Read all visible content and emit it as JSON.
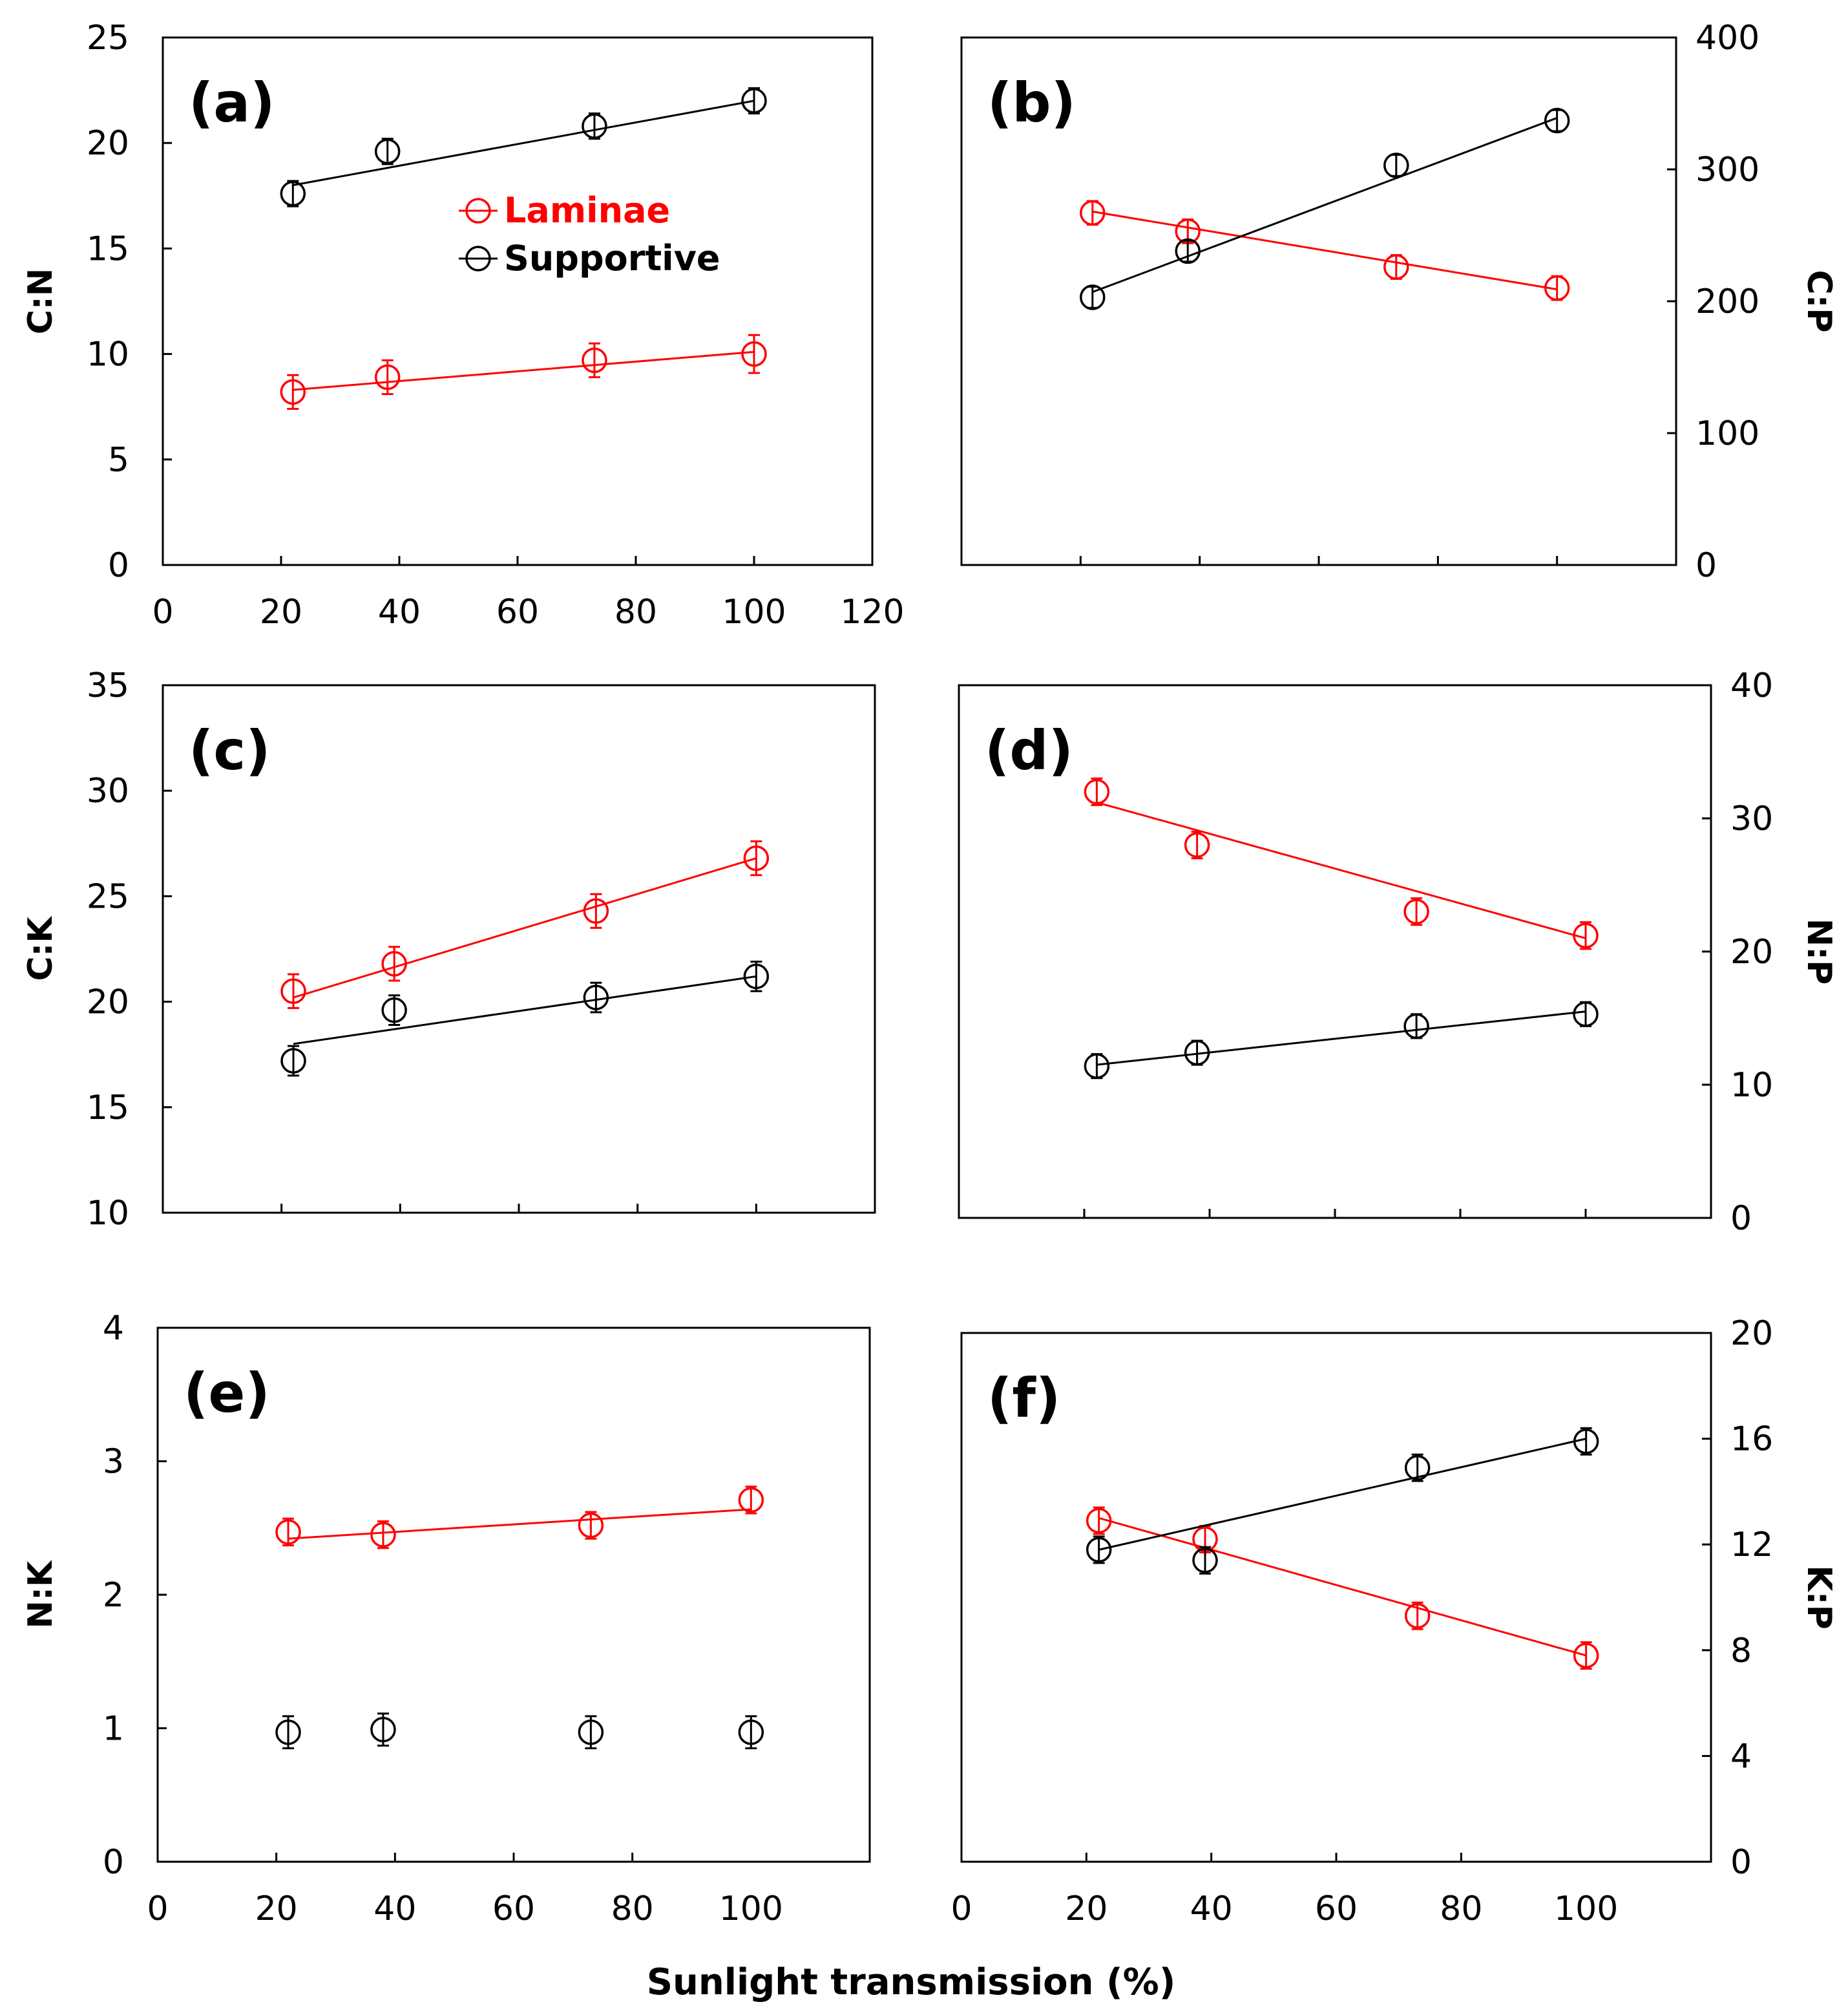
{
  "colors": {
    "laminae": "#ff0000",
    "supportive": "#000000",
    "axis": "#000000"
  },
  "legend": {
    "laminae": "Laminae",
    "supportive": "Supportive"
  },
  "x_axis_label": "Sunlight transmission (%)",
  "chart_data": [
    {
      "type": "scatter",
      "label": "(a)",
      "ylabel": "C:N",
      "y_side": "left",
      "xlim": [
        0,
        120
      ],
      "ylim": [
        0,
        25
      ],
      "xticks": [
        0,
        20,
        40,
        60,
        80,
        100,
        120
      ],
      "yticks": [
        0,
        5,
        10,
        15,
        20,
        25
      ],
      "show_xtick_labels": true,
      "legend": true,
      "series": [
        {
          "name": "Laminae",
          "x": [
            22,
            38,
            73,
            100
          ],
          "y": [
            8.2,
            8.9,
            9.7,
            10.0
          ],
          "err": [
            0.8,
            0.8,
            0.8,
            0.9
          ],
          "fit": [
            [
              22,
              8.3
            ],
            [
              100,
              10.1
            ]
          ]
        },
        {
          "name": "Supportive",
          "x": [
            22,
            38,
            73,
            100
          ],
          "y": [
            17.6,
            19.6,
            20.8,
            22.0
          ],
          "err": [
            0.6,
            0.6,
            0.6,
            0.6
          ],
          "fit": [
            [
              22,
              18.0
            ],
            [
              100,
              22.0
            ]
          ]
        }
      ]
    },
    {
      "type": "scatter",
      "label": "(b)",
      "ylabel": "C:P",
      "y_side": "right",
      "xlim": [
        0,
        120
      ],
      "ylim": [
        0,
        400
      ],
      "xticks": [
        0,
        20,
        40,
        60,
        80,
        100,
        120
      ],
      "yticks": [
        0,
        100,
        200,
        300,
        400
      ],
      "show_xtick_labels": false,
      "legend": false,
      "series": [
        {
          "name": "Laminae",
          "x": [
            22,
            38,
            73,
            100
          ],
          "y": [
            267,
            253,
            226,
            210
          ],
          "err": [
            9,
            9,
            9,
            9
          ],
          "fit": [
            [
              22,
              268
            ],
            [
              100,
              209
            ]
          ]
        },
        {
          "name": "Supportive",
          "x": [
            22,
            38,
            73,
            100
          ],
          "y": [
            203,
            238,
            303,
            337
          ],
          "err": [
            8,
            8,
            8,
            8
          ],
          "fit": [
            [
              22,
              207
            ],
            [
              100,
              339
            ]
          ]
        }
      ]
    },
    {
      "type": "scatter",
      "label": "(c)",
      "ylabel": "C:K",
      "y_side": "left",
      "xlim": [
        0,
        120
      ],
      "ylim": [
        10,
        35
      ],
      "xticks": [
        0,
        20,
        40,
        60,
        80,
        100,
        120
      ],
      "yticks": [
        10,
        15,
        20,
        25,
        30,
        35
      ],
      "show_xtick_labels": false,
      "legend": false,
      "series": [
        {
          "name": "Laminae",
          "x": [
            22,
            39,
            73,
            100
          ],
          "y": [
            20.5,
            21.8,
            24.3,
            26.8
          ],
          "err": [
            0.8,
            0.8,
            0.8,
            0.8
          ],
          "fit": [
            [
              22,
              20.2
            ],
            [
              100,
              26.8
            ]
          ]
        },
        {
          "name": "Supportive",
          "x": [
            22,
            39,
            73,
            100
          ],
          "y": [
            17.2,
            19.6,
            20.2,
            21.2
          ],
          "err": [
            0.7,
            0.7,
            0.7,
            0.7
          ],
          "fit": [
            [
              22,
              18.0
            ],
            [
              100,
              21.2
            ]
          ]
        }
      ]
    },
    {
      "type": "scatter",
      "label": "(d)",
      "ylabel": "N:P",
      "y_side": "right",
      "xlim": [
        0,
        120
      ],
      "ylim": [
        0,
        40
      ],
      "xticks": [
        0,
        20,
        40,
        60,
        80,
        100,
        120
      ],
      "yticks": [
        0,
        10,
        20,
        30,
        40
      ],
      "show_xtick_labels": false,
      "legend": false,
      "series": [
        {
          "name": "Laminae",
          "x": [
            22,
            38,
            73,
            100
          ],
          "y": [
            32.0,
            28.0,
            23.0,
            21.2
          ],
          "err": [
            1.0,
            1.0,
            1.0,
            1.0
          ],
          "fit": [
            [
              22,
              31.2
            ],
            [
              100,
              21.0
            ]
          ]
        },
        {
          "name": "Supportive",
          "x": [
            22,
            38,
            73,
            100
          ],
          "y": [
            11.4,
            12.4,
            14.4,
            15.3
          ],
          "err": [
            0.9,
            0.9,
            0.9,
            0.9
          ],
          "fit": [
            [
              22,
              11.5
            ],
            [
              100,
              15.5
            ]
          ]
        }
      ]
    },
    {
      "type": "scatter",
      "label": "(e)",
      "ylabel": "N:K",
      "y_side": "left",
      "xlim": [
        0,
        120
      ],
      "ylim": [
        0,
        4
      ],
      "xticks": [
        0,
        20,
        40,
        60,
        80,
        100
      ],
      "yticks": [
        0,
        1,
        2,
        3,
        4
      ],
      "show_xtick_labels": true,
      "legend": false,
      "series": [
        {
          "name": "Laminae",
          "x": [
            22,
            38,
            73,
            100
          ],
          "y": [
            2.47,
            2.45,
            2.52,
            2.71
          ],
          "err": [
            0.1,
            0.1,
            0.1,
            0.1
          ],
          "fit": [
            [
              22,
              2.42
            ],
            [
              100,
              2.64
            ]
          ]
        },
        {
          "name": "Supportive",
          "x": [
            22,
            38,
            73,
            100
          ],
          "y": [
            0.97,
            0.99,
            0.97,
            0.97
          ],
          "err": [
            0.12,
            0.12,
            0.12,
            0.12
          ],
          "fit": null
        }
      ]
    },
    {
      "type": "scatter",
      "label": "(f)",
      "ylabel": "K:P",
      "y_side": "right",
      "xlim": [
        0,
        120
      ],
      "ylim": [
        0,
        20
      ],
      "xticks": [
        0,
        20,
        40,
        60,
        80,
        100
      ],
      "yticks": [
        0,
        4,
        8,
        12,
        16,
        20
      ],
      "show_xtick_labels": true,
      "legend": false,
      "series": [
        {
          "name": "Laminae",
          "x": [
            22,
            39,
            73,
            100
          ],
          "y": [
            12.9,
            12.2,
            9.3,
            7.8
          ],
          "err": [
            0.5,
            0.5,
            0.5,
            0.5
          ],
          "fit": [
            [
              22,
              13.0
            ],
            [
              100,
              7.8
            ]
          ]
        },
        {
          "name": "Supportive",
          "x": [
            22,
            39,
            73,
            100
          ],
          "y": [
            11.8,
            11.4,
            14.9,
            15.9
          ],
          "err": [
            0.5,
            0.5,
            0.5,
            0.5
          ],
          "fit": [
            [
              22,
              11.8
            ],
            [
              100,
              16.0
            ]
          ]
        }
      ]
    }
  ]
}
